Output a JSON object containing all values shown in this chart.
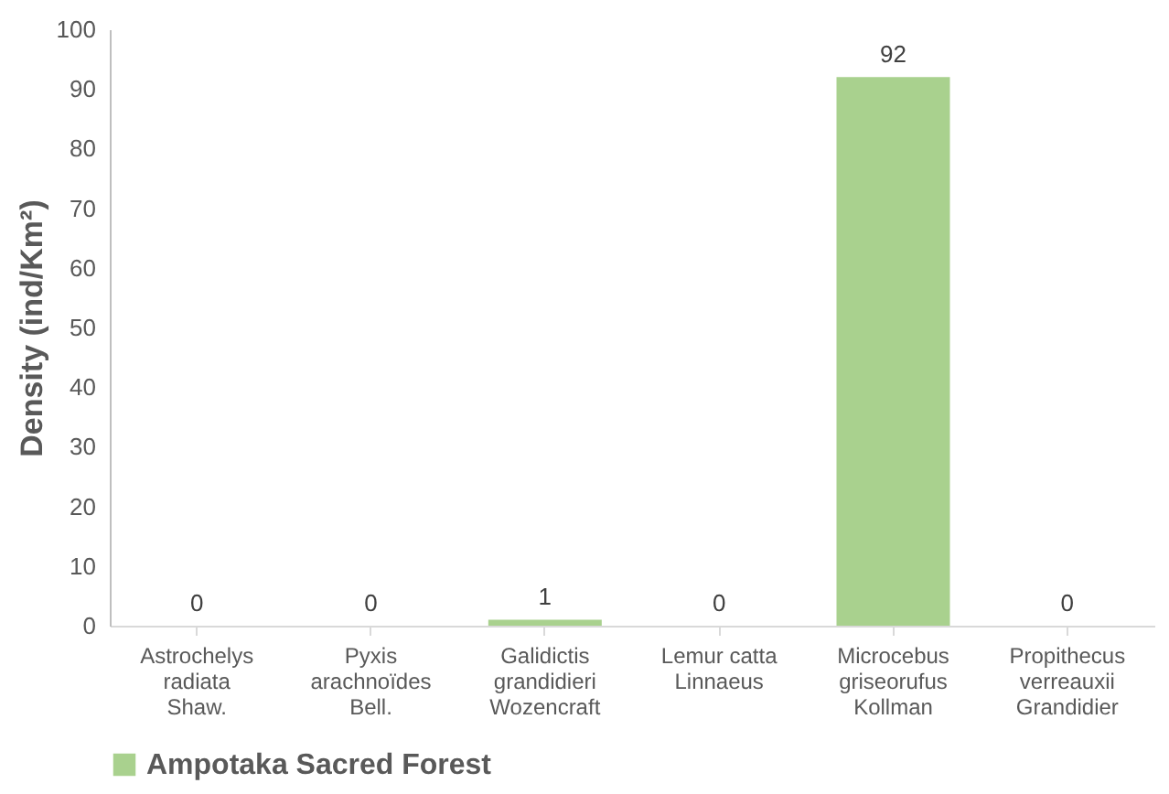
{
  "chart_data": {
    "type": "bar",
    "ylabel": "Density (ind/Km²)",
    "categories": [
      "Astrochelys\nradiata\nShaw.",
      "Pyxis\narachnoïdes\nBell.",
      "Galidictis\ngrandidieri\nWozencraft",
      "Lemur catta\nLinnaeus",
      "Microcebus\ngriseorufus\nKollman",
      "Propithecus\nverreauxii\nGrandidier"
    ],
    "series": [
      {
        "name": "Ampotaka Sacred Forest",
        "color": "#a9d18e",
        "values": [
          0,
          0,
          1,
          0,
          92,
          0
        ]
      }
    ],
    "ylim": [
      0,
      100
    ],
    "yticks": [
      0,
      10,
      20,
      30,
      40,
      50,
      60,
      70,
      80,
      90,
      100
    ],
    "data_labels": true,
    "legend": "bottom",
    "grid": false
  }
}
